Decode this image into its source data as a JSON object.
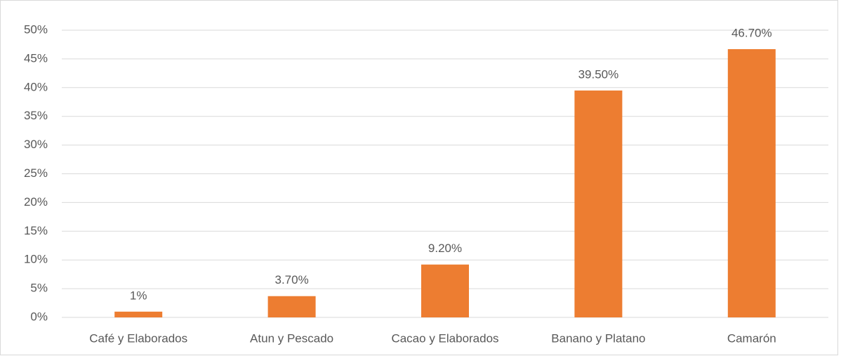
{
  "chart_data": {
    "type": "bar",
    "categories": [
      "Café y Elaborados",
      "Atun y Pescado",
      "Cacao y Elaborados",
      "Banano y Platano",
      "Camarón"
    ],
    "values": [
      1,
      3.7,
      9.2,
      39.5,
      46.7
    ],
    "value_labels": [
      "1%",
      "3.70%",
      "9.20%",
      "39.50%",
      "46.70%"
    ],
    "color": "#ed7d31",
    "ylim": [
      0,
      50
    ],
    "yticks": [
      {
        "value": 0,
        "label": "0%"
      },
      {
        "value": 5,
        "label": "5%"
      },
      {
        "value": 10,
        "label": "10%"
      },
      {
        "value": 15,
        "label": "15%"
      },
      {
        "value": 20,
        "label": "20%"
      },
      {
        "value": 25,
        "label": "25%"
      },
      {
        "value": 30,
        "label": "30%"
      },
      {
        "value": 35,
        "label": "35%"
      },
      {
        "value": 40,
        "label": "40%"
      },
      {
        "value": 45,
        "label": "45%"
      },
      {
        "value": 50,
        "label": "50%"
      }
    ],
    "grid": true
  }
}
